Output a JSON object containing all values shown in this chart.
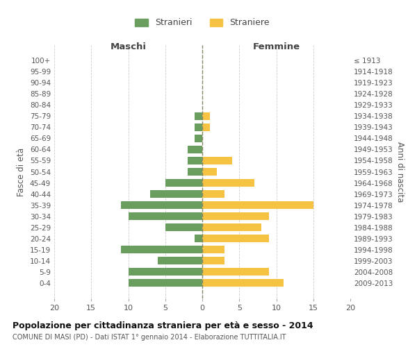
{
  "age_groups": [
    "100+",
    "95-99",
    "90-94",
    "85-89",
    "80-84",
    "75-79",
    "70-74",
    "65-69",
    "60-64",
    "55-59",
    "50-54",
    "45-49",
    "40-44",
    "35-39",
    "30-34",
    "25-29",
    "20-24",
    "15-19",
    "10-14",
    "5-9",
    "0-4"
  ],
  "birth_years": [
    "≤ 1913",
    "1914-1918",
    "1919-1923",
    "1924-1928",
    "1929-1933",
    "1934-1938",
    "1939-1943",
    "1944-1948",
    "1949-1953",
    "1954-1958",
    "1959-1963",
    "1964-1968",
    "1969-1973",
    "1974-1978",
    "1979-1983",
    "1984-1988",
    "1989-1993",
    "1994-1998",
    "1999-2003",
    "2004-2008",
    "2009-2013"
  ],
  "maschi": [
    0,
    0,
    0,
    0,
    0,
    1,
    1,
    1,
    2,
    2,
    2,
    5,
    7,
    11,
    10,
    5,
    1,
    11,
    6,
    10,
    10
  ],
  "femmine": [
    0,
    0,
    0,
    0,
    0,
    1,
    1,
    0,
    0,
    4,
    2,
    7,
    3,
    15,
    9,
    8,
    9,
    3,
    3,
    9,
    11
  ],
  "color_maschi": "#6a9e5e",
  "color_femmine": "#f5c242",
  "background_color": "#ffffff",
  "grid_color": "#cccccc",
  "title": "Popolazione per cittadinanza straniera per età e sesso - 2014",
  "subtitle": "COMUNE DI MASI (PD) - Dati ISTAT 1° gennaio 2014 - Elaborazione TUTTITALIA.IT",
  "ylabel_left": "Fasce di età",
  "ylabel_right": "Anni di nascita",
  "header_left": "Maschi",
  "header_right": "Femmine",
  "legend_maschi": "Stranieri",
  "legend_femmine": "Straniere",
  "xlim": 20
}
